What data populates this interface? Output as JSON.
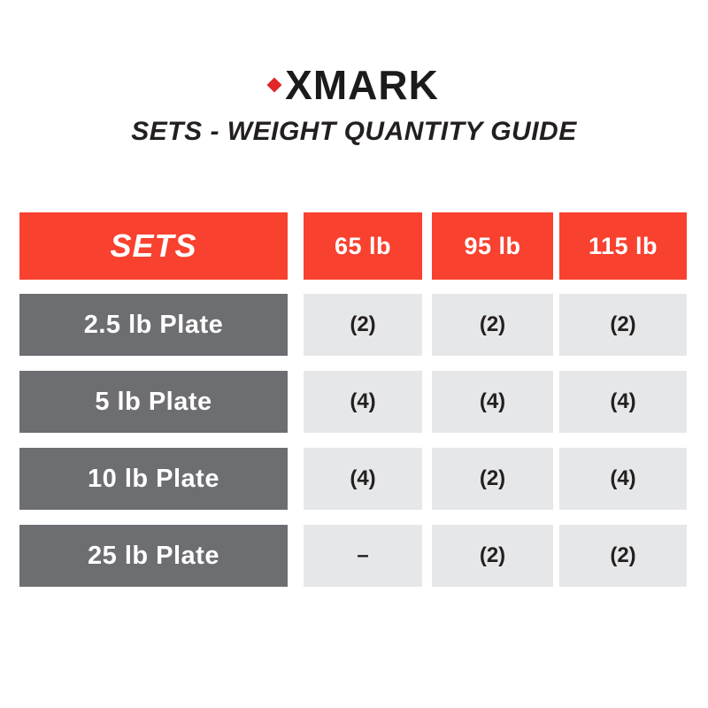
{
  "brand": {
    "logo_text": "XMARK",
    "diamond_color": "#E02826"
  },
  "title": "SETS - WEIGHT QUANTITY GUIDE",
  "colors": {
    "header_red": "#F9412F",
    "row_label_gray": "#6D6E71",
    "value_cell_gray": "#E6E7E8",
    "text_dark": "#231F20"
  },
  "table": {
    "header": {
      "label": "SETS",
      "columns": [
        "65 lb",
        "95 lb",
        "115 lb"
      ]
    },
    "rows": [
      {
        "label": "2.5 lb Plate",
        "values": [
          "(2)",
          "(2)",
          "(2)"
        ]
      },
      {
        "label": "5 lb Plate",
        "values": [
          "(4)",
          "(4)",
          "(4)"
        ]
      },
      {
        "label": "10 lb Plate",
        "values": [
          "(4)",
          "(2)",
          "(4)"
        ]
      },
      {
        "label": "25 lb Plate",
        "values": [
          "–",
          "(2)",
          "(2)"
        ]
      }
    ]
  }
}
